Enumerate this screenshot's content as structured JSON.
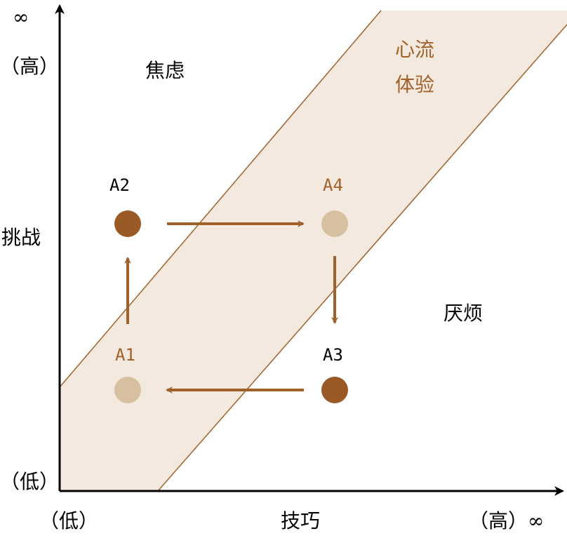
{
  "axes": {
    "y_infinity": "∞",
    "y_high": "（高）",
    "y_label": "挑战",
    "y_low": "（低）",
    "x_low": "（低）",
    "x_label": "技巧",
    "x_high": "（高）∞"
  },
  "regions": {
    "anxiety": "焦虑",
    "boredom": "厌烦",
    "flow_line1": "心流",
    "flow_line2": "体验"
  },
  "points": {
    "a1": "A1",
    "a2": "A2",
    "a3": "A3",
    "a4": "A4"
  },
  "colors": {
    "band_fill": "#f3e9df",
    "band_edge": "#a0622a",
    "dark_point": "#9a5a26",
    "light_point": "#d7c0a0",
    "arrow": "#a0622a"
  }
}
